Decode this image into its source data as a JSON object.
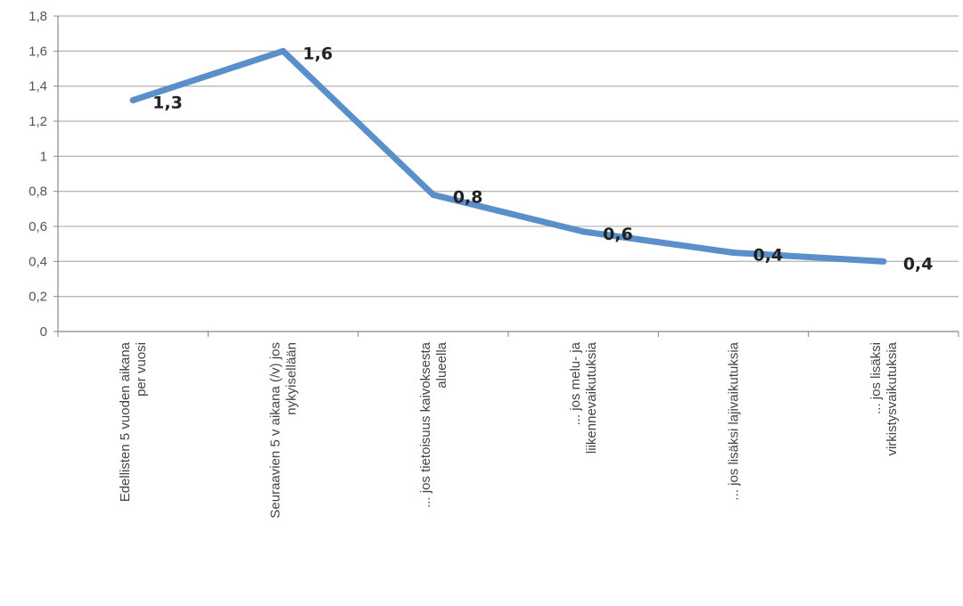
{
  "chart_data": {
    "type": "line",
    "title": "",
    "xlabel": "",
    "ylabel": "",
    "ylim": [
      0,
      1.8
    ],
    "yticks": [
      0,
      0.2,
      0.4,
      0.6,
      0.8,
      1.0,
      1.2,
      1.4,
      1.6,
      1.8
    ],
    "ytick_labels": [
      "0",
      "0,2",
      "0,4",
      "0,6",
      "0,8",
      "1",
      "1,2",
      "1,4",
      "1,6",
      "1,8"
    ],
    "grid": true,
    "legend": "none",
    "line_color": "#5B8FC9",
    "categories": [
      [
        "Edellisten 5 vuoden aikana",
        "per vuosi"
      ],
      [
        "Seuraavien 5 v aikana (/v) jos",
        "nykyisellään"
      ],
      [
        "... jos tietoisuus kaivoksesta",
        "alueella"
      ],
      [
        "... jos melu- ja",
        "liikennevaikutuksia"
      ],
      [
        "... jos lisäksi lajivaikutuksia"
      ],
      [
        "... jos lisäksi",
        "virkistysvaikutuksia"
      ]
    ],
    "values": [
      1.32,
      1.6,
      0.78,
      0.57,
      0.45,
      0.4
    ],
    "data_labels": [
      "1,3",
      "1,6",
      "0,8",
      "0,6",
      "0,4",
      "0,4"
    ]
  }
}
